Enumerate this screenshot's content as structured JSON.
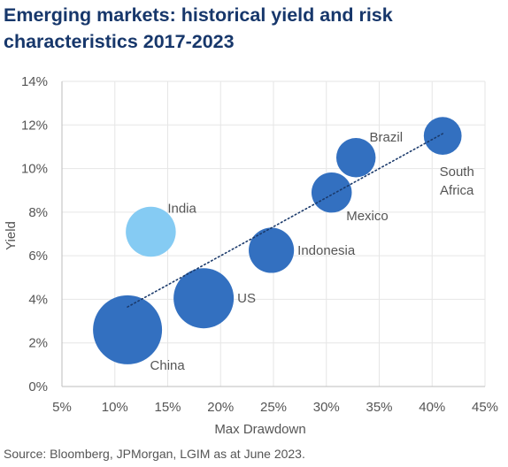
{
  "title_line1": "Emerging markets: historical yield and risk",
  "title_line2": "characteristics 2017-2023",
  "source": "Source: Bloomberg, JPMorgan, LGIM as at June 2023.",
  "colors": {
    "bubble": "#3370c0",
    "highlight": "#85cbf3",
    "trend": "#1b3a6b",
    "grid": "#e6e6e6",
    "text": "#555555"
  },
  "chart_data": {
    "type": "scatter",
    "xlabel": "Max Drawdown",
    "ylabel": "Yield",
    "xlim": [
      5,
      45
    ],
    "ylim": [
      0,
      14
    ],
    "x_ticks": [
      5,
      10,
      15,
      20,
      25,
      30,
      35,
      40,
      45
    ],
    "y_ticks": [
      0,
      2,
      4,
      6,
      8,
      10,
      12,
      14
    ],
    "x_tick_labels": [
      "5%",
      "10%",
      "15%",
      "20%",
      "25%",
      "30%",
      "35%",
      "40%",
      "45%"
    ],
    "y_tick_labels": [
      "0%",
      "2%",
      "4%",
      "6%",
      "8%",
      "10%",
      "12%",
      "14%"
    ],
    "grid": true,
    "bubble_size": "relative, unlabeled",
    "points": [
      {
        "label": "China",
        "x": 11.2,
        "y": 2.6,
        "size": 1.0,
        "highlight": false,
        "label_pos": "below-right"
      },
      {
        "label": "US",
        "x": 18.4,
        "y": 4.05,
        "size": 0.76,
        "highlight": false,
        "label_pos": "right"
      },
      {
        "label": "India",
        "x": 13.4,
        "y": 7.1,
        "size": 0.525,
        "highlight": true,
        "label_pos": "above-right"
      },
      {
        "label": "Indonesia",
        "x": 24.8,
        "y": 6.25,
        "size": 0.43,
        "highlight": false,
        "label_pos": "right"
      },
      {
        "label": "Mexico",
        "x": 30.5,
        "y": 8.9,
        "size": 0.34,
        "highlight": false,
        "label_pos": "below-right"
      },
      {
        "label": "Brazil",
        "x": 32.8,
        "y": 10.5,
        "size": 0.325,
        "highlight": false,
        "label_pos": "above-right"
      },
      {
        "label": "South\nAfrica",
        "x": 41.0,
        "y": 11.5,
        "size": 0.3,
        "highlight": false,
        "label_pos": "below"
      }
    ],
    "trendline": {
      "style": "dotted",
      "from": [
        11.2,
        3.65
      ],
      "to": [
        41.0,
        11.6
      ]
    }
  }
}
